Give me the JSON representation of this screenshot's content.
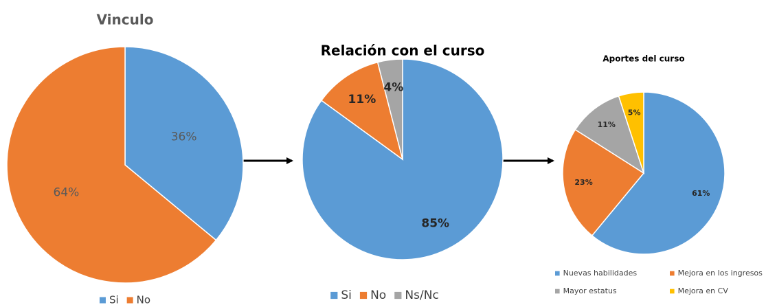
{
  "chart_data": [
    {
      "type": "pie",
      "title": "Vinculo",
      "categories": [
        "Si",
        "No"
      ],
      "values": [
        36,
        64
      ],
      "value_labels": [
        "36%",
        "64%"
      ],
      "colors": [
        "#5b9bd5",
        "#ed7d31"
      ],
      "legend": "bottom"
    },
    {
      "type": "pie",
      "title": "Relación con el curso",
      "categories": [
        "Si",
        "No",
        "Ns/Nc"
      ],
      "values": [
        85,
        11,
        4
      ],
      "value_labels": [
        "85%",
        "11%",
        "4%"
      ],
      "colors": [
        "#5b9bd5",
        "#ed7d31",
        "#a5a5a5"
      ],
      "legend": "bottom"
    },
    {
      "type": "pie",
      "title": "Aportes del curso",
      "categories": [
        "Nuevas habilidades",
        "Mejora en los ingresos",
        "Mayor estatus",
        "Mejora en CV"
      ],
      "values": [
        61,
        23,
        11,
        5
      ],
      "value_labels": [
        "61%",
        "23%",
        "11%",
        "5%"
      ],
      "colors": [
        "#5b9bd5",
        "#ed7d31",
        "#a5a5a5",
        "#ffc000"
      ],
      "legend": "bottom"
    }
  ]
}
